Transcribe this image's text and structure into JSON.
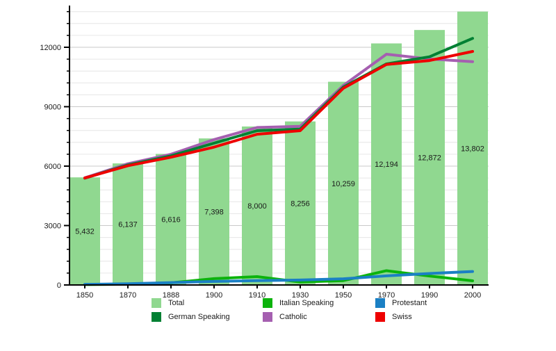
{
  "chart_data": {
    "type": "bar+line",
    "title": "",
    "xlabel": "",
    "ylabel": "",
    "categories": [
      "1850",
      "1870",
      "1888",
      "1900",
      "1910",
      "1930",
      "1950",
      "1970",
      "1990",
      "2000"
    ],
    "bar_series": {
      "name": "Total",
      "color": "#90d890",
      "values": [
        5432,
        6137,
        6616,
        7398,
        8000,
        8256,
        10259,
        12194,
        12872,
        13802
      ],
      "labels": [
        "5,432",
        "6,137",
        "6,616",
        "7,398",
        "8,000",
        "8,256",
        "10,259",
        "12,194",
        "12,872",
        "13,802"
      ]
    },
    "line_series": [
      {
        "name": "German Speaking",
        "color": "#008033",
        "values": [
          5390,
          6060,
          6520,
          7160,
          7790,
          7870,
          9990,
          11160,
          11520,
          12450
        ]
      },
      {
        "name": "Italian Speaking",
        "color": "#0cb30c",
        "values": [
          20,
          40,
          110,
          320,
          420,
          150,
          220,
          720,
          450,
          210
        ]
      },
      {
        "name": "Protestant",
        "color": "#1b80c4",
        "values": [
          30,
          60,
          120,
          180,
          220,
          250,
          310,
          460,
          580,
          680
        ]
      },
      {
        "name": "Catholic",
        "color": "#a55fb0",
        "values": [
          5410,
          6120,
          6600,
          7340,
          7950,
          8010,
          10070,
          11650,
          11410,
          11270
        ]
      },
      {
        "name": "Swiss",
        "color": "#ee0000",
        "values": [
          5400,
          6020,
          6450,
          6960,
          7610,
          7790,
          9930,
          11130,
          11330,
          11790
        ]
      }
    ],
    "draw_order": [
      "Catholic",
      "German Speaking",
      "Italian Speaking",
      "Protestant",
      "Swiss"
    ],
    "ylim": [
      0,
      14000
    ],
    "yticks": [
      0,
      3000,
      6000,
      9000,
      12000
    ],
    "ytick_labels": [
      "0",
      "3000",
      "6000",
      "9000",
      "12000"
    ],
    "minor_grid_step": 600,
    "grid": true,
    "legend_position": "bottom"
  },
  "legend": {
    "columns": [
      [
        {
          "label": "Total",
          "color": "#90d890"
        },
        {
          "label": "German Speaking",
          "color": "#008033"
        }
      ],
      [
        {
          "label": "Italian Speaking",
          "color": "#0cb30c"
        },
        {
          "label": "Catholic",
          "color": "#a55fb0"
        }
      ],
      [
        {
          "label": "Protestant",
          "color": "#1b80c4"
        },
        {
          "label": "Swiss",
          "color": "#ee0000"
        }
      ]
    ]
  }
}
